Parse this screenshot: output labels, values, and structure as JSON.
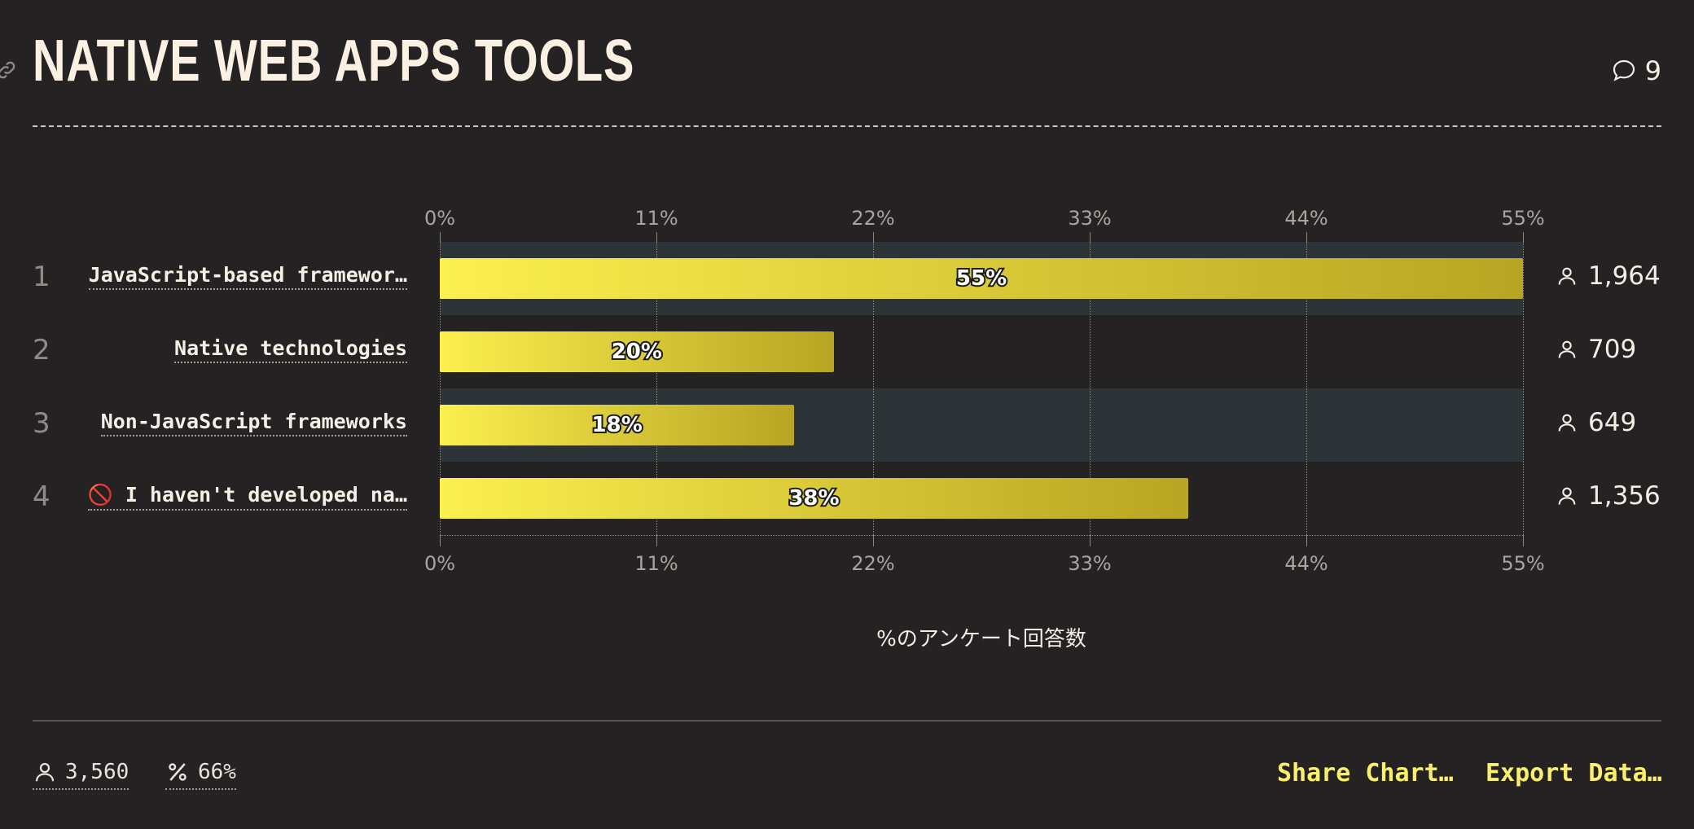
{
  "header": {
    "title": "NATIVE WEB APPS TOOLS",
    "comment_count": "9"
  },
  "chart_data": {
    "type": "bar",
    "orientation": "horizontal",
    "xlabel": "%のアンケート回答数",
    "xlim": [
      0,
      55
    ],
    "ticks": [
      "0%",
      "11%",
      "22%",
      "33%",
      "44%",
      "55%"
    ],
    "tick_values": [
      0,
      11,
      22,
      33,
      44,
      55
    ],
    "categories": [
      "JavaScript-based framewor…",
      "Native technologies",
      "Non-JavaScript frameworks",
      "🚫 I haven't developed na…"
    ],
    "ranks": [
      "1",
      "2",
      "3",
      "4"
    ],
    "values": [
      55,
      20,
      18,
      38
    ],
    "value_labels": [
      "55%",
      "20%",
      "18%",
      "38%"
    ],
    "counts": [
      "1,964",
      "709",
      "649",
      "1,356"
    ],
    "bar_colors": [
      "#fbf04e",
      "#b8a523"
    ],
    "alternate_band_color": "#2d3438",
    "grid": true
  },
  "footer": {
    "respondents": "3,560",
    "percentage": "66%",
    "share_label": "Share Chart…",
    "export_label": "Export Data…"
  },
  "icons": {
    "link": "link-icon",
    "comments": "comment-bubble-icon",
    "user": "user-icon",
    "percent": "percent-icon"
  }
}
